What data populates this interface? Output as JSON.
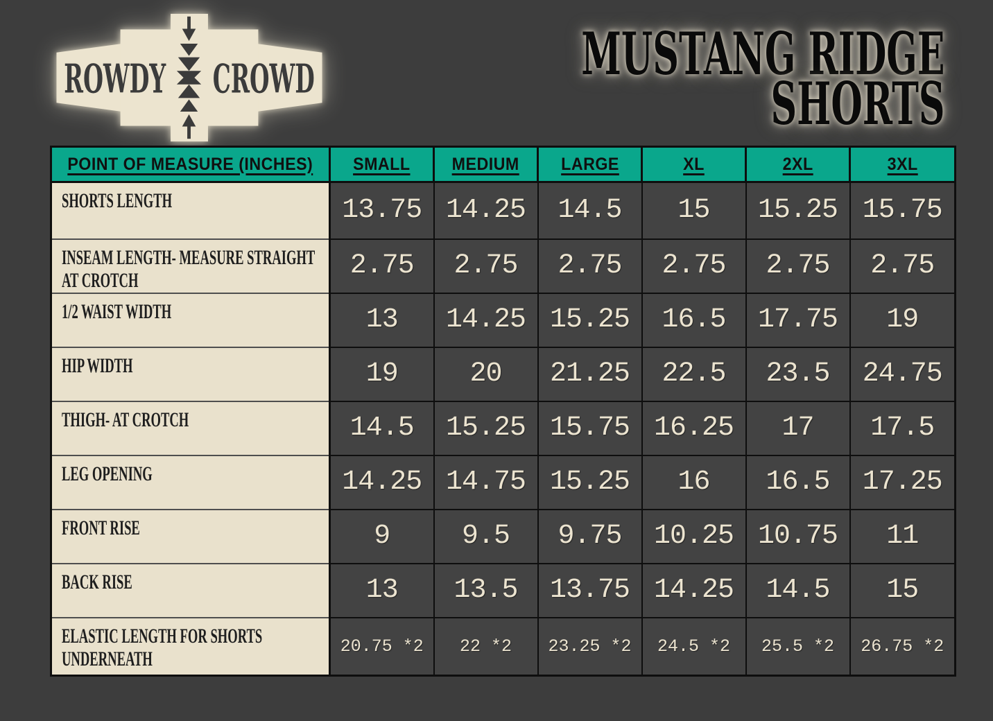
{
  "page": {
    "background": "#3d3d3d"
  },
  "logo": {
    "word1": "ROWDY",
    "word2": "CROWD"
  },
  "title": {
    "line1": "MUSTANG RIDGE",
    "line2": "SHORTS"
  },
  "colors": {
    "header_teal": "#0aa78c",
    "label_cream": "#e9e1cc",
    "cell_dark": "#434343",
    "value_text": "#ece4d0",
    "page_background": "#3d3d3d"
  },
  "chart_data": {
    "type": "table",
    "title": "MUSTANG RIDGE SHORTS",
    "brand": "ROWDY CROWD",
    "unit": "inches",
    "columns": [
      "POINT OF MEASURE (INCHES)",
      "SMALL",
      "MEDIUM",
      "LARGE",
      "XL",
      "2XL",
      "3XL"
    ],
    "rows": [
      {
        "label": "SHORTS LENGTH",
        "values": [
          "13.75",
          "14.25",
          "14.5",
          "15",
          "15.25",
          "15.75"
        ]
      },
      {
        "label": "INSEAM LENGTH- MEASURE STRAIGHT AT CROTCH",
        "values": [
          "2.75",
          "2.75",
          "2.75",
          "2.75",
          "2.75",
          "2.75"
        ]
      },
      {
        "label": "1/2 WAIST WIDTH",
        "values": [
          "13",
          "14.25",
          "15.25",
          "16.5",
          "17.75",
          "19"
        ]
      },
      {
        "label": "HIP WIDTH",
        "values": [
          "19",
          "20",
          "21.25",
          "22.5",
          "23.5",
          "24.75"
        ]
      },
      {
        "label": "THIGH- AT CROTCH",
        "values": [
          "14.5",
          "15.25",
          "15.75",
          "16.25",
          "17",
          "17.5"
        ]
      },
      {
        "label": "LEG OPENING",
        "values": [
          "14.25",
          "14.75",
          "15.25",
          "16",
          "16.5",
          "17.25"
        ]
      },
      {
        "label": "FRONT RISE",
        "values": [
          "9",
          "9.5",
          "9.75",
          "10.25",
          "10.75",
          "11"
        ]
      },
      {
        "label": "BACK RISE",
        "values": [
          "13",
          "13.5",
          "13.75",
          "14.25",
          "14.5",
          "15"
        ]
      },
      {
        "label": "ELASTIC LENGTH FOR SHORTS UNDERNEATH",
        "values": [
          "20.75 *2",
          "22 *2",
          "23.25 *2",
          "24.5 *2",
          "25.5 *2",
          "26.75 *2"
        ]
      }
    ]
  }
}
